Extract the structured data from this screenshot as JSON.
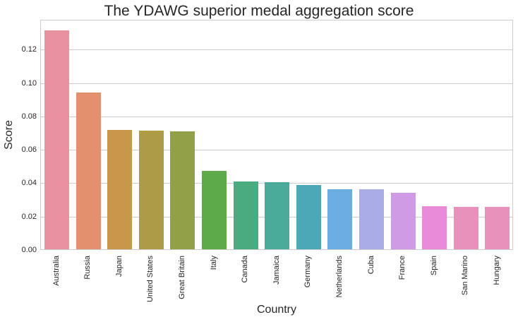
{
  "chart_data": {
    "type": "bar",
    "title": "The YDAWG superior medal aggregation score",
    "xlabel": "Country",
    "ylabel": "Score",
    "ylim": [
      0,
      0.138
    ],
    "yticks": [
      "0.00",
      "0.02",
      "0.04",
      "0.06",
      "0.08",
      "0.10",
      "0.12"
    ],
    "grid": true,
    "legend": null,
    "categories": [
      "Australia",
      "Russia",
      "Japan",
      "United States",
      "Great Britain",
      "Italy",
      "Canada",
      "Jamaica",
      "Germany",
      "Netherlands",
      "Cuba",
      "France",
      "Spain",
      "San Marino",
      "Hungary"
    ],
    "values": [
      0.131,
      0.094,
      0.0715,
      0.071,
      0.0707,
      0.047,
      0.0406,
      0.0402,
      0.0386,
      0.036,
      0.0359,
      0.0338,
      0.0258,
      0.0255,
      0.0254
    ],
    "colors": [
      "#e8919f",
      "#e2906d",
      "#c8974b",
      "#ad9b47",
      "#92a047",
      "#5daa4a",
      "#4aab80",
      "#4aab9a",
      "#4ca8b6",
      "#6aade0",
      "#aaace8",
      "#cf9be5",
      "#e88bd9",
      "#e791bb",
      "#e791bb"
    ]
  }
}
